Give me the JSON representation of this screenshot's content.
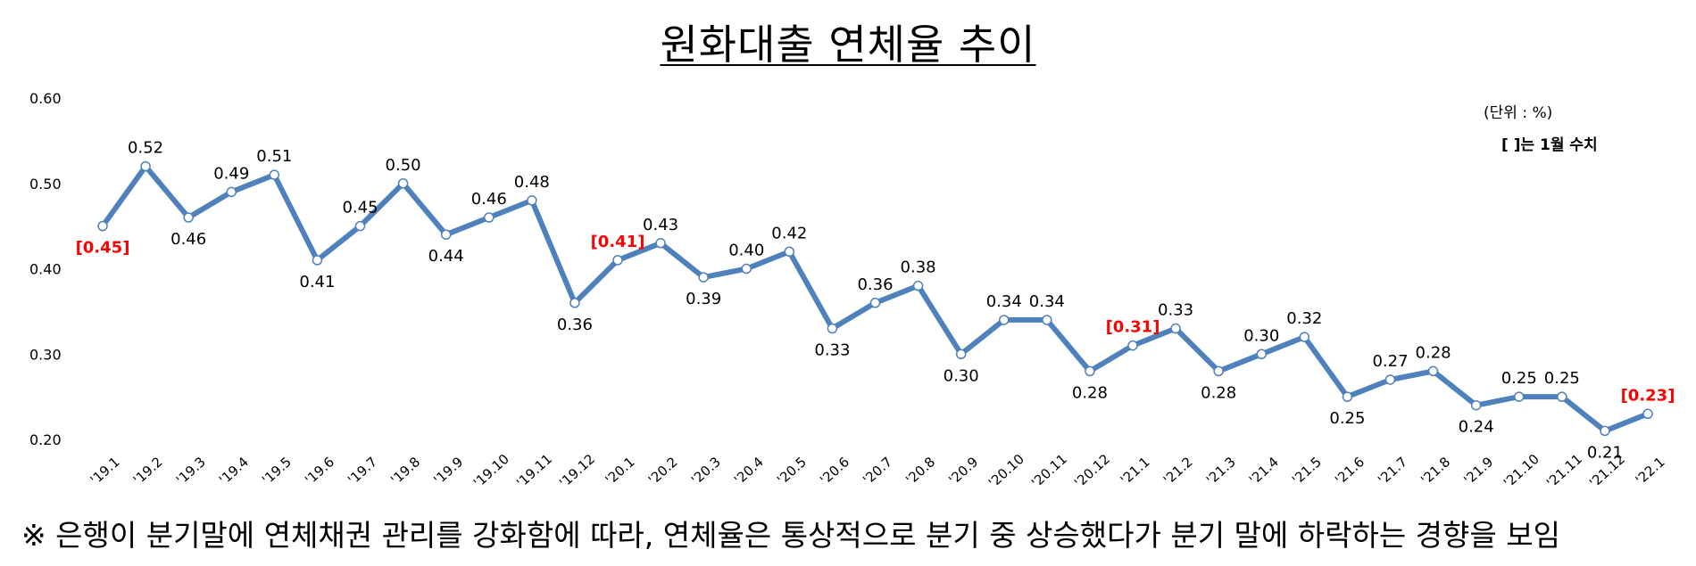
{
  "chart_data": {
    "type": "line",
    "title": "원화대출 연체율 추이",
    "unit_note": "(단위 : %)",
    "bracket_note": "[    ]는 1월 수치",
    "footnote": "※ 은행이 분기말에 연체채권 관리를 강화함에 따라, 연체율은 통상적으로 분기 중 상승했다가 분기 말에 하락하는 경향을 보임",
    "ylim": [
      0.2,
      0.6
    ],
    "y_ticks": [
      "0.20",
      "0.30",
      "0.40",
      "0.50",
      "0.60"
    ],
    "grid": false,
    "line_color": "#4F81BD",
    "highlight_color": "#FF0000",
    "categories": [
      "'19.1",
      "'19.2",
      "'19.3",
      "'19.4",
      "'19.5",
      "'19.6",
      "'19.7",
      "'19.8",
      "'19.9",
      "'19.10",
      "'19.11",
      "'19.12",
      "'20.1",
      "'20.2",
      "'20.3",
      "'20.4",
      "'20.5",
      "'20.6",
      "'20.7",
      "'20.8",
      "'20.9",
      "'20.10",
      "'20.11",
      "'20.12",
      "'21.1",
      "'21.2",
      "'21.3",
      "'21.4",
      "'21.5",
      "'21.6",
      "'21.7",
      "'21.8",
      "'21.9",
      "'21.10",
      "'21.11",
      "'21.12",
      "'22.1"
    ],
    "values": [
      0.45,
      0.52,
      0.46,
      0.49,
      0.51,
      0.41,
      0.45,
      0.5,
      0.44,
      0.46,
      0.48,
      0.36,
      0.41,
      0.43,
      0.39,
      0.4,
      0.42,
      0.33,
      0.36,
      0.38,
      0.3,
      0.34,
      0.34,
      0.28,
      0.31,
      0.33,
      0.28,
      0.3,
      0.32,
      0.25,
      0.27,
      0.28,
      0.24,
      0.25,
      0.25,
      0.21,
      0.23
    ],
    "labels": [
      "[0.45]",
      "0.52",
      "0.46",
      "0.49",
      "0.51",
      "0.41",
      "0.45",
      "0.50",
      "0.44",
      "0.46",
      "0.48",
      "0.36",
      "[0.41]",
      "0.43",
      "0.39",
      "0.40",
      "0.42",
      "0.33",
      "0.36",
      "0.38",
      "0.30",
      "0.34",
      "0.34",
      "0.28",
      "[0.31]",
      "0.33",
      "0.28",
      "0.30",
      "0.32",
      "0.25",
      "0.27",
      "0.28",
      "0.24",
      "0.25",
      "0.25",
      "0.21",
      "[0.23]"
    ],
    "highlighted": [
      0,
      12,
      24,
      36
    ]
  }
}
